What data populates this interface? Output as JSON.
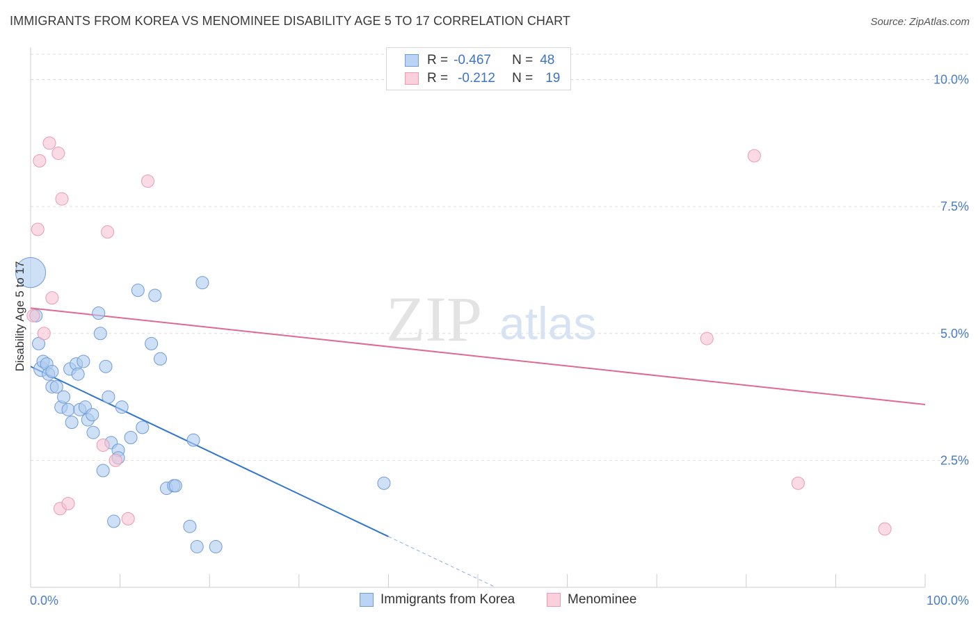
{
  "title": "IMMIGRANTS FROM KOREA VS MENOMINEE DISABILITY AGE 5 TO 17 CORRELATION CHART",
  "source": "Source: ZipAtlas.com",
  "watermark": {
    "zip": "ZIP",
    "atlas": "atlas"
  },
  "legend_top": {
    "rows": [
      {
        "r_label": "R =",
        "r_value": "-0.467",
        "n_label": "N =",
        "n_value": "48"
      },
      {
        "r_label": "R =",
        "r_value": "-0.212",
        "n_label": "N =",
        "n_value": "19"
      }
    ]
  },
  "legend_bottom": {
    "items": [
      "Immigrants from Korea",
      "Menominee"
    ]
  },
  "colors": {
    "korea_fill": "#aecbf0",
    "korea_stroke": "#6f9bd8",
    "korea_line": "#2f74d0",
    "menominee_fill": "#f7c3d3",
    "menominee_stroke": "#eb9ab3",
    "menominee_line": "#e0698f",
    "tick_text": "#4a7cc4",
    "grid": "#dedede"
  },
  "chart_data": {
    "type": "scatter",
    "title": "IMMIGRANTS FROM KOREA VS MENOMINEE DISABILITY AGE 5 TO 17 CORRELATION CHART",
    "xlabel": "",
    "ylabel": "Disability Age 5 to 17",
    "xlim": [
      0,
      100
    ],
    "ylim": [
      0,
      10.5
    ],
    "x_tick_labels": [
      "0.0%",
      "100.0%"
    ],
    "y_ticks": [
      2.5,
      5.0,
      7.5,
      10.0
    ],
    "y_tick_labels": [
      "2.5%",
      "5.0%",
      "7.5%",
      "10.0%"
    ],
    "grid": true,
    "legend_position": "bottom",
    "series": [
      {
        "name": "Immigrants from Korea",
        "color": "#aecbf0",
        "points": [
          [
            0.0,
            6.2,
            2.4
          ],
          [
            0.6,
            5.35,
            1
          ],
          [
            0.9,
            4.8,
            1
          ],
          [
            1.2,
            4.3,
            1.2
          ],
          [
            1.4,
            4.45,
            1
          ],
          [
            1.8,
            4.4,
            1
          ],
          [
            2.0,
            4.2,
            1
          ],
          [
            2.4,
            4.25,
            1
          ],
          [
            2.4,
            3.95,
            1
          ],
          [
            2.9,
            3.95,
            1
          ],
          [
            3.4,
            3.55,
            1
          ],
          [
            3.7,
            3.75,
            1
          ],
          [
            4.2,
            3.5,
            1
          ],
          [
            4.4,
            4.3,
            1
          ],
          [
            4.6,
            3.25,
            1
          ],
          [
            5.1,
            4.4,
            1
          ],
          [
            5.3,
            4.2,
            1
          ],
          [
            5.5,
            3.5,
            1
          ],
          [
            5.9,
            4.45,
            1
          ],
          [
            6.1,
            3.55,
            1
          ],
          [
            6.4,
            3.3,
            1
          ],
          [
            6.9,
            3.4,
            1
          ],
          [
            7.0,
            3.05,
            1
          ],
          [
            7.6,
            5.4,
            1
          ],
          [
            7.8,
            5.0,
            1
          ],
          [
            8.1,
            2.3,
            1
          ],
          [
            8.4,
            4.35,
            1
          ],
          [
            8.7,
            3.75,
            1
          ],
          [
            9.0,
            2.85,
            1
          ],
          [
            9.3,
            1.3,
            1
          ],
          [
            9.8,
            2.7,
            1
          ],
          [
            9.8,
            2.55,
            1
          ],
          [
            10.2,
            3.55,
            1
          ],
          [
            11.2,
            2.95,
            1
          ],
          [
            12.0,
            5.85,
            1
          ],
          [
            12.5,
            3.15,
            1
          ],
          [
            13.5,
            4.8,
            1
          ],
          [
            13.9,
            5.75,
            1
          ],
          [
            14.5,
            4.5,
            1
          ],
          [
            15.2,
            1.95,
            1
          ],
          [
            16.0,
            2.0,
            1
          ],
          [
            16.2,
            2.0,
            1
          ],
          [
            17.8,
            1.2,
            1
          ],
          [
            18.2,
            2.9,
            1
          ],
          [
            18.6,
            0.8,
            1
          ],
          [
            19.2,
            6.0,
            1
          ],
          [
            20.7,
            0.8,
            1
          ],
          [
            39.5,
            2.05,
            1
          ]
        ]
      },
      {
        "name": "Menominee",
        "color": "#f7c3d3",
        "points": [
          [
            0.3,
            5.35,
            1
          ],
          [
            0.8,
            7.05,
            1
          ],
          [
            1.0,
            8.4,
            1
          ],
          [
            1.5,
            5.0,
            1
          ],
          [
            2.1,
            8.75,
            1
          ],
          [
            2.4,
            5.7,
            1
          ],
          [
            3.1,
            8.55,
            1
          ],
          [
            3.3,
            1.55,
            1
          ],
          [
            3.5,
            7.65,
            1
          ],
          [
            4.2,
            1.65,
            1
          ],
          [
            8.1,
            2.8,
            1
          ],
          [
            8.6,
            7.0,
            1
          ],
          [
            9.5,
            2.5,
            1
          ],
          [
            10.9,
            1.35,
            1
          ],
          [
            13.1,
            8.0,
            1
          ],
          [
            75.6,
            4.9,
            1
          ],
          [
            80.9,
            8.5,
            1
          ],
          [
            85.8,
            2.05,
            1
          ],
          [
            95.5,
            1.15,
            1
          ]
        ]
      }
    ],
    "trend_lines": [
      {
        "series": "Immigrants from Korea",
        "x_start": 0,
        "y_start": 4.35,
        "x_end": 40,
        "y_end": 1.0,
        "dashed_to": {
          "x": 52,
          "y": 0.0
        }
      },
      {
        "series": "Menominee",
        "x_start": 0,
        "y_start": 5.5,
        "x_end": 100,
        "y_end": 3.6
      }
    ],
    "stats": [
      {
        "series": "Immigrants from Korea",
        "r": -0.467,
        "n": 48
      },
      {
        "series": "Menominee",
        "r": -0.212,
        "n": 19
      }
    ]
  }
}
